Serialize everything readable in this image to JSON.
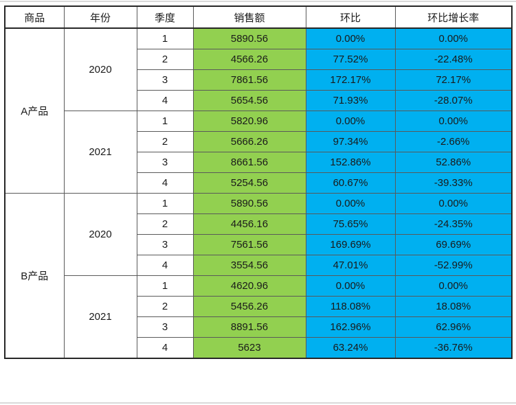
{
  "colors": {
    "sales_column_bg": "#92d050",
    "ratio_column_bg": "#00b0f0",
    "grid_line": "#595959",
    "outer_border": "#262626"
  },
  "table": {
    "headers": [
      "商品",
      "年份",
      "季度",
      "销售额",
      "环比",
      "环比增长率"
    ],
    "groups": [
      {
        "product": "A产品",
        "years": [
          {
            "year": "2020",
            "rows": [
              {
                "quarter": "1",
                "sales": "5890.56",
                "mom": "0.00%",
                "growth": "0.00%"
              },
              {
                "quarter": "2",
                "sales": "4566.26",
                "mom": "77.52%",
                "growth": "-22.48%"
              },
              {
                "quarter": "3",
                "sales": "7861.56",
                "mom": "172.17%",
                "growth": "72.17%"
              },
              {
                "quarter": "4",
                "sales": "5654.56",
                "mom": "71.93%",
                "growth": "-28.07%"
              }
            ]
          },
          {
            "year": "2021",
            "rows": [
              {
                "quarter": "1",
                "sales": "5820.96",
                "mom": "0.00%",
                "growth": "0.00%"
              },
              {
                "quarter": "2",
                "sales": "5666.26",
                "mom": "97.34%",
                "growth": "-2.66%"
              },
              {
                "quarter": "3",
                "sales": "8661.56",
                "mom": "152.86%",
                "growth": "52.86%"
              },
              {
                "quarter": "4",
                "sales": "5254.56",
                "mom": "60.67%",
                "growth": "-39.33%"
              }
            ]
          }
        ]
      },
      {
        "product": "B产品",
        "years": [
          {
            "year": "2020",
            "rows": [
              {
                "quarter": "1",
                "sales": "5890.56",
                "mom": "0.00%",
                "growth": "0.00%"
              },
              {
                "quarter": "2",
                "sales": "4456.16",
                "mom": "75.65%",
                "growth": "-24.35%"
              },
              {
                "quarter": "3",
                "sales": "7561.56",
                "mom": "169.69%",
                "growth": "69.69%"
              },
              {
                "quarter": "4",
                "sales": "3554.56",
                "mom": "47.01%",
                "growth": "-52.99%"
              }
            ]
          },
          {
            "year": "2021",
            "rows": [
              {
                "quarter": "1",
                "sales": "4620.96",
                "mom": "0.00%",
                "growth": "0.00%"
              },
              {
                "quarter": "2",
                "sales": "5456.26",
                "mom": "118.08%",
                "growth": "18.08%"
              },
              {
                "quarter": "3",
                "sales": "8891.56",
                "mom": "162.96%",
                "growth": "62.96%"
              },
              {
                "quarter": "4",
                "sales": "5623",
                "mom": "63.24%",
                "growth": "-36.76%"
              }
            ]
          }
        ]
      }
    ]
  }
}
